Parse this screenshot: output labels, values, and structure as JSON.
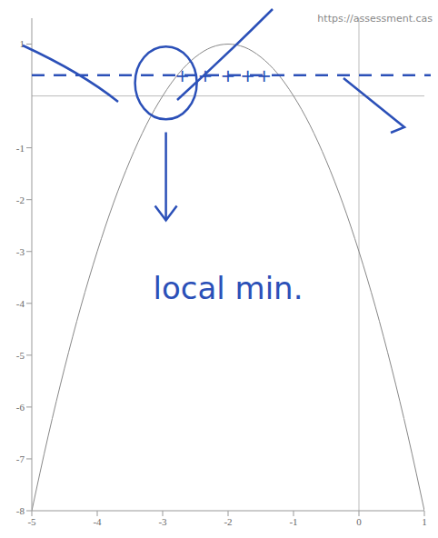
{
  "chart_data": {
    "type": "line",
    "source_url": "https://assessment.cas",
    "x": [
      -5,
      -4.75,
      -4.5,
      -4.25,
      -4,
      -3.75,
      -3.5,
      -3.25,
      -3,
      -2.75,
      -2.5,
      -2.25,
      -2,
      -1.75,
      -1.5,
      -1.25,
      -1,
      -0.75,
      -0.5,
      -0.25,
      0,
      0.25,
      0.5,
      0.75,
      1
    ],
    "values": [
      -8,
      -6.56,
      -5.25,
      -4.06,
      -3,
      -2.06,
      -1.25,
      -0.56,
      0,
      0.44,
      0.75,
      0.94,
      1,
      0.94,
      0.75,
      0.44,
      0,
      -0.56,
      -1.25,
      -2.06,
      -3,
      -4.06,
      -5.25,
      -6.56,
      -8
    ],
    "color": "#888888",
    "xlim": [
      -5,
      1
    ],
    "xticks": [
      -5,
      -4,
      -3,
      -2,
      -1,
      0,
      1
    ],
    "ylim": [
      -8,
      1.5
    ],
    "yticks": [
      -8,
      -7,
      -6,
      -5,
      -4,
      -3,
      -2,
      -1,
      1
    ],
    "grid": false,
    "annotations": [
      {
        "text": "local min.",
        "x": -2.0,
        "y": -3.7,
        "color": "#2b50b8"
      },
      {
        "text": "+",
        "x": -2.7,
        "y": 0.4,
        "color": "#2b50b8"
      },
      {
        "text": "+",
        "x": -2.35,
        "y": 0.4,
        "color": "#2b50b8"
      },
      {
        "text": "+",
        "x": -2.0,
        "y": 0.4,
        "color": "#2b50b8"
      },
      {
        "text": "+",
        "x": -1.7,
        "y": 0.4,
        "color": "#2b50b8"
      },
      {
        "text": "+",
        "x": -1.45,
        "y": 0.4,
        "color": "#2b50b8"
      }
    ]
  }
}
